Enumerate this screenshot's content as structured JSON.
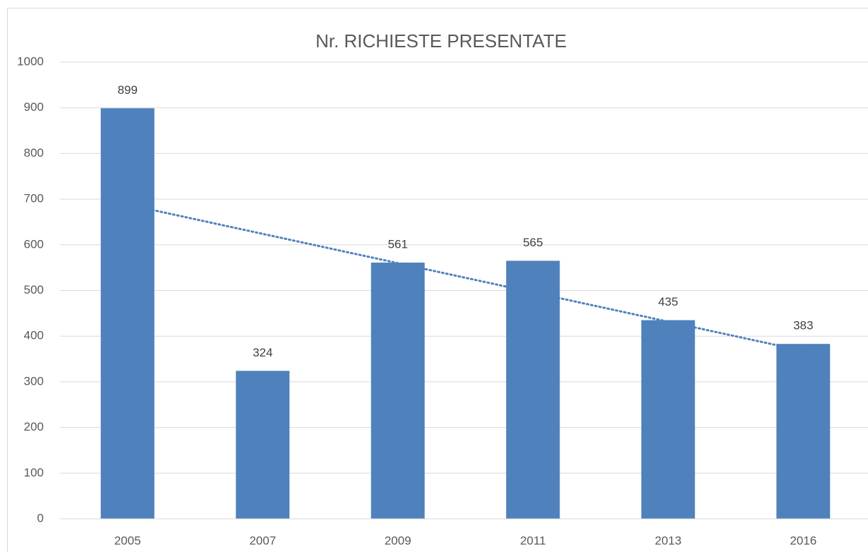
{
  "chart_data": {
    "type": "bar",
    "title": "Nr. RICHIESTE PRESENTATE",
    "categories": [
      "2005",
      "2007",
      "2009",
      "2011",
      "2013",
      "2016"
    ],
    "values": [
      899,
      324,
      561,
      565,
      435,
      383
    ],
    "color": "#4f81bd",
    "ylim": [
      0,
      1000
    ],
    "yticks": [
      0,
      100,
      200,
      300,
      400,
      500,
      600,
      700,
      800,
      900,
      1000
    ],
    "grid": true,
    "trendline": "linear",
    "trendline_color": "#4f81bd"
  }
}
